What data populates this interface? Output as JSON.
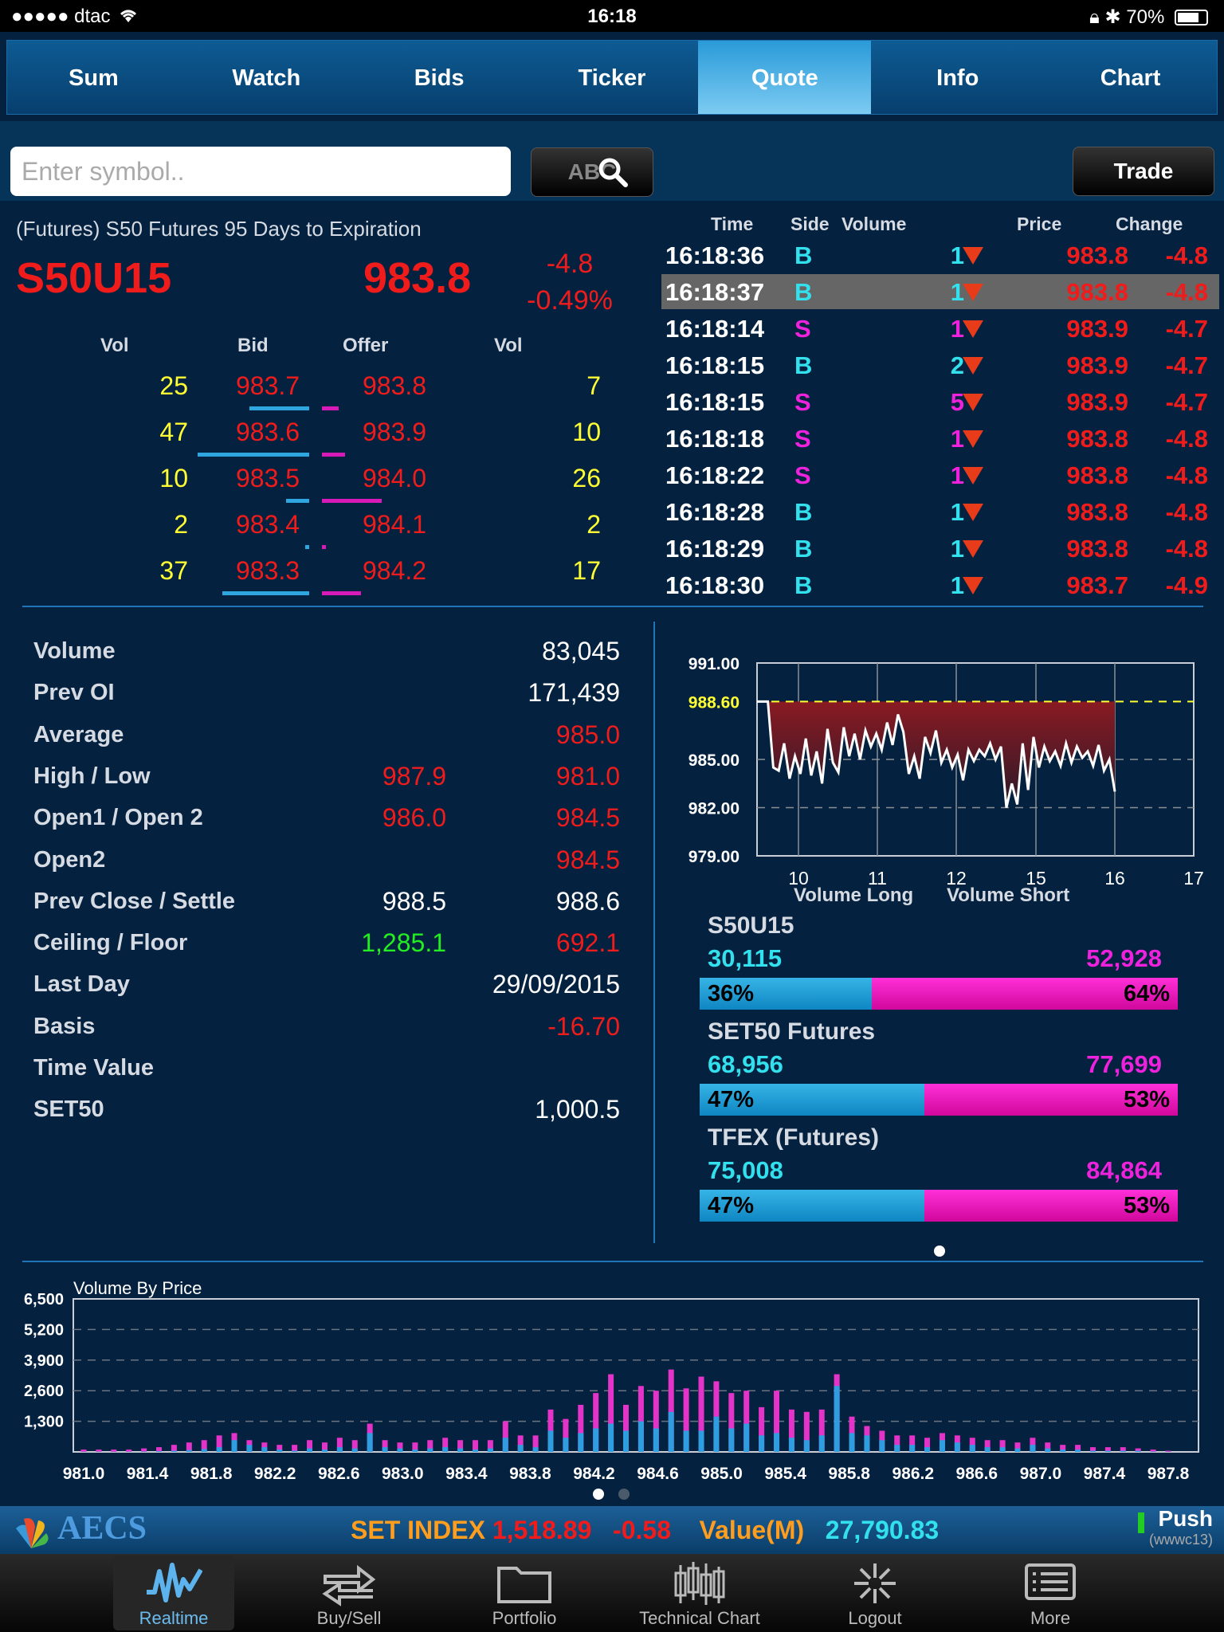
{
  "status_bar": {
    "carrier": "●●●●● dtac",
    "time": "16:18",
    "battery": "70%"
  },
  "tabs": [
    {
      "label": "Sum"
    },
    {
      "label": "Watch"
    },
    {
      "label": "Bids"
    },
    {
      "label": "Ticker"
    },
    {
      "label": "Quote",
      "active": true
    },
    {
      "label": "Info"
    },
    {
      "label": "Chart"
    }
  ],
  "search": {
    "placeholder": "Enter symbol..",
    "value": "",
    "abc_label": "ABC"
  },
  "trade_button": "Trade",
  "quote": {
    "description": "(Futures) S50 Futures 95 Days to Expiration",
    "symbol": "S50U15",
    "last": "983.8",
    "change": "-4.8",
    "change_pct": "-0.49%"
  },
  "order_book": {
    "headers": {
      "bid_vol": "Vol",
      "bid": "Bid",
      "offer": "Offer",
      "offer_vol": "Vol"
    },
    "rows": [
      {
        "bid_vol": "25",
        "bid": "983.7",
        "offer": "983.8",
        "offer_vol": "7",
        "bid_frac": 0.29,
        "offer_frac": 0.08
      },
      {
        "bid_vol": "47",
        "bid": "983.6",
        "offer": "983.9",
        "offer_vol": "10",
        "bid_frac": 0.54,
        "offer_frac": 0.11
      },
      {
        "bid_vol": "10",
        "bid": "983.5",
        "offer": "984.0",
        "offer_vol": "26",
        "bid_frac": 0.11,
        "offer_frac": 0.29
      },
      {
        "bid_vol": "2",
        "bid": "983.4",
        "offer": "984.1",
        "offer_vol": "2",
        "bid_frac": 0.02,
        "offer_frac": 0.02
      },
      {
        "bid_vol": "37",
        "bid": "983.3",
        "offer": "984.2",
        "offer_vol": "17",
        "bid_frac": 0.42,
        "offer_frac": 0.19
      }
    ]
  },
  "trades": {
    "headers": {
      "time": "Time",
      "side": "Side",
      "volume": "Volume",
      "price": "Price",
      "change": "Change"
    },
    "rows": [
      {
        "time": "16:18:36",
        "side": "B",
        "volume": "1",
        "price": "983.8",
        "change": "-4.8"
      },
      {
        "time": "16:18:37",
        "side": "B",
        "volume": "1",
        "price": "983.8",
        "change": "-4.8"
      },
      {
        "time": "16:18:14",
        "side": "S",
        "volume": "1",
        "price": "983.9",
        "change": "-4.7"
      },
      {
        "time": "16:18:15",
        "side": "B",
        "volume": "2",
        "price": "983.9",
        "change": "-4.7"
      },
      {
        "time": "16:18:15",
        "side": "S",
        "volume": "5",
        "price": "983.9",
        "change": "-4.7"
      },
      {
        "time": "16:18:18",
        "side": "S",
        "volume": "1",
        "price": "983.8",
        "change": "-4.8"
      },
      {
        "time": "16:18:22",
        "side": "S",
        "volume": "1",
        "price": "983.8",
        "change": "-4.8"
      },
      {
        "time": "16:18:28",
        "side": "B",
        "volume": "1",
        "price": "983.8",
        "change": "-4.8"
      },
      {
        "time": "16:18:29",
        "side": "B",
        "volume": "1",
        "price": "983.8",
        "change": "-4.8"
      },
      {
        "time": "16:18:30",
        "side": "B",
        "volume": "1",
        "price": "983.7",
        "change": "-4.9"
      }
    ]
  },
  "stats": {
    "volume": {
      "label": "Volume",
      "value": "83,045"
    },
    "prev_oi": {
      "label": "Prev OI",
      "value": "171,439"
    },
    "average": {
      "label": "Average",
      "value": "985.0"
    },
    "high_low": {
      "label": "High / Low",
      "v1": "987.9",
      "v2": "981.0"
    },
    "open": {
      "label": "Open1 / Open 2",
      "v1": "986.0",
      "v2": "984.5"
    },
    "open2": {
      "label": "Open2",
      "value": "984.5"
    },
    "prev_close": {
      "label": "Prev Close / Settle",
      "v1": "988.5",
      "v2": "988.6"
    },
    "ceiling_floor": {
      "label": "Ceiling / Floor",
      "v1": "1,285.1",
      "v2": "692.1"
    },
    "last_day": {
      "label": "Last Day",
      "value": "29/09/2015"
    },
    "basis": {
      "label": "Basis",
      "value": "-16.70"
    },
    "time_value": {
      "label": "Time Value",
      "value": ""
    },
    "set50": {
      "label": "SET50",
      "value": "1,000.5"
    }
  },
  "colors": {
    "up_green": "#22ee22",
    "down_red": "#f01c1c",
    "buy_cyan": "#33e0ee",
    "sell_magenta": "#ee22dd",
    "bid_bar": "#2fa6e0",
    "offer_bar": "#d81bb8"
  },
  "chart_data": [
    {
      "type": "line",
      "y_ticks": [
        "991.00",
        "988.60",
        "985.00",
        "982.00",
        "979.00"
      ],
      "x_ticks": [
        "10",
        "11",
        "12",
        "15",
        "16",
        "17"
      ],
      "ylim": [
        979,
        991
      ],
      "reference_line": 988.6,
      "values": [
        988.6,
        988.6,
        988.6,
        984.5,
        984.3,
        986.0,
        983.8,
        985.2,
        984.1,
        986.3,
        984.0,
        985.5,
        983.5,
        986.9,
        984.8,
        984.2,
        987.0,
        985.2,
        986.6,
        985.0,
        986.8,
        985.8,
        986.6,
        985.6,
        987.3,
        985.9,
        987.8,
        986.7,
        984.1,
        985.2,
        983.8,
        986.4,
        985.4,
        986.8,
        984.8,
        985.6,
        984.5,
        985.3,
        983.7,
        985.6,
        984.9,
        985.6,
        985.2,
        986.0,
        985.0,
        985.8,
        982.0,
        983.5,
        982.2,
        986.0,
        983.1,
        986.4,
        984.5,
        985.8,
        984.9,
        985.5,
        984.6,
        986.0,
        984.8,
        985.8,
        985.1,
        985.5,
        984.6,
        985.9,
        984.3,
        985.0,
        983.0
      ]
    },
    {
      "type": "bar",
      "title": "Volume By Price",
      "y_ticks": [
        "6,500",
        "5,200",
        "3,900",
        "2,600",
        "1,300"
      ],
      "x_ticks": [
        "981.0",
        "981.4",
        "981.8",
        "982.2",
        "982.6",
        "983.0",
        "983.4",
        "983.8",
        "984.2",
        "984.6",
        "985.0",
        "985.4",
        "985.8",
        "986.2",
        "986.6",
        "987.0",
        "987.4",
        "987.8"
      ],
      "ylim": [
        0,
        6500
      ],
      "series": [
        {
          "values": [
            10,
            10,
            10,
            10,
            20,
            30,
            50,
            80,
            120,
            200,
            500,
            300,
            200,
            100,
            50,
            150,
            100,
            200,
            150,
            800,
            200,
            150,
            100,
            150,
            200,
            150,
            100,
            150,
            600,
            300,
            200,
            900,
            600,
            800,
            1000,
            1200,
            900,
            1300,
            1000,
            1700,
            900,
            900,
            1500,
            1000,
            1200,
            700,
            800,
            600,
            500,
            700,
            2800,
            800,
            700,
            500,
            300,
            300,
            200,
            500,
            400,
            300,
            200,
            200,
            150,
            300,
            150,
            100,
            100,
            50,
            50,
            50,
            50,
            20,
            10
          ]
        },
        {
          "values": [
            100,
            100,
            100,
            100,
            150,
            200,
            300,
            400,
            500,
            700,
            800,
            500,
            400,
            300,
            300,
            500,
            400,
            600,
            500,
            1200,
            500,
            400,
            400,
            500,
            600,
            500,
            500,
            500,
            1300,
            700,
            700,
            1800,
            1400,
            2000,
            2500,
            3300,
            2000,
            2800,
            2600,
            3500,
            2700,
            3200,
            3000,
            2500,
            2600,
            1900,
            2600,
            1800,
            1700,
            1800,
            3300,
            1500,
            1100,
            900,
            700,
            700,
            600,
            800,
            700,
            600,
            500,
            500,
            400,
            600,
            400,
            300,
            300,
            200,
            200,
            200,
            150,
            100,
            50
          ]
        }
      ]
    }
  ],
  "mini_chart_legend": {
    "long": "Volume Long",
    "short": "Volume Short"
  },
  "sentiment": [
    {
      "name": "S50U15",
      "long": "30,115",
      "short": "52,928",
      "long_pct": "36%",
      "short_pct": "64%",
      "long_frac": 0.36
    },
    {
      "name": "SET50 Futures",
      "long": "68,956",
      "short": "77,699",
      "long_pct": "47%",
      "short_pct": "53%",
      "long_frac": 0.47
    },
    {
      "name": "TFEX (Futures)",
      "long": "75,008",
      "short": "84,864",
      "long_pct": "47%",
      "short_pct": "53%",
      "long_frac": 0.47
    }
  ],
  "bottom_strip": {
    "logo": "AECS",
    "set_index_label": "SET INDEX",
    "set_index_value": "1,518.89",
    "set_index_change": "-0.58",
    "value_label": "Value(M)",
    "value": "27,790.83",
    "push_label": "Push",
    "push_server": "(wwwc13)"
  },
  "tab_bar": [
    {
      "label": "Realtime",
      "icon": "pulse-icon",
      "active": true
    },
    {
      "label": "Buy/Sell",
      "icon": "arrows-icon"
    },
    {
      "label": "Portfolio",
      "icon": "folder-icon"
    },
    {
      "label": "Technical Chart",
      "icon": "candlestick-icon"
    },
    {
      "label": "Logout",
      "icon": "logout-icon"
    },
    {
      "label": "More",
      "icon": "list-icon"
    }
  ]
}
